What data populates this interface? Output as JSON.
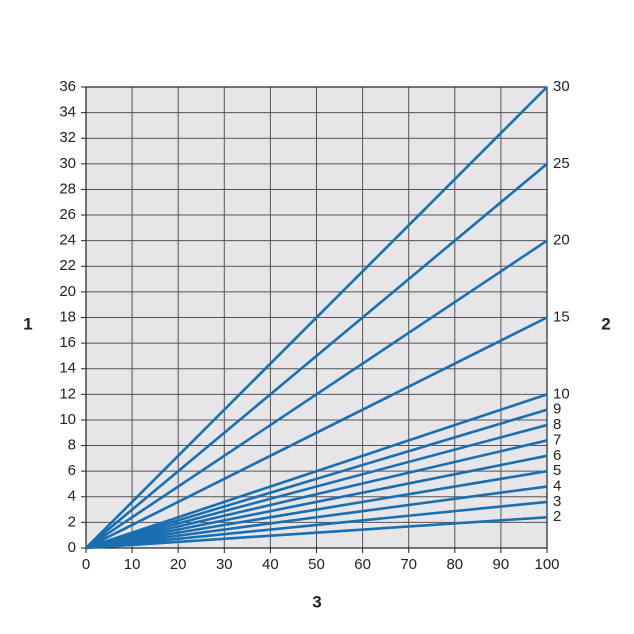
{
  "chart_data": {
    "type": "line",
    "y_label": "1",
    "y2_label": "2",
    "x_label": "3",
    "x": [
      0,
      100
    ],
    "xlim": [
      0,
      100
    ],
    "xticks": [
      0,
      10,
      20,
      30,
      40,
      50,
      60,
      70,
      80,
      90,
      100
    ],
    "ylim": [
      0,
      36
    ],
    "yticks": [
      0,
      2,
      4,
      6,
      8,
      10,
      12,
      14,
      16,
      18,
      20,
      22,
      24,
      26,
      28,
      30,
      32,
      34,
      36
    ],
    "grid": true,
    "background": "#e6e6e8",
    "series": [
      {
        "name": "30",
        "color": "#1a6fb0",
        "values": [
          0,
          36
        ]
      },
      {
        "name": "25",
        "color": "#1a6fb0",
        "values": [
          0,
          30
        ]
      },
      {
        "name": "20",
        "color": "#1a6fb0",
        "values": [
          0,
          24
        ]
      },
      {
        "name": "15",
        "color": "#1a6fb0",
        "values": [
          0,
          18
        ]
      },
      {
        "name": "10",
        "color": "#1a6fb0",
        "values": [
          0,
          12
        ]
      },
      {
        "name": "9",
        "color": "#1a6fb0",
        "values": [
          0,
          10.8
        ]
      },
      {
        "name": "8",
        "color": "#1a6fb0",
        "values": [
          0,
          9.6
        ]
      },
      {
        "name": "7",
        "color": "#1a6fb0",
        "values": [
          0,
          8.4
        ]
      },
      {
        "name": "6",
        "color": "#1a6fb0",
        "values": [
          0,
          7.2
        ]
      },
      {
        "name": "5",
        "color": "#1a6fb0",
        "values": [
          0,
          6
        ]
      },
      {
        "name": "4",
        "color": "#1a6fb0",
        "values": [
          0,
          4.8
        ]
      },
      {
        "name": "3",
        "color": "#1a6fb0",
        "values": [
          0,
          3.6
        ]
      },
      {
        "name": "2",
        "color": "#1a6fb0",
        "values": [
          0,
          2.4
        ]
      }
    ]
  }
}
